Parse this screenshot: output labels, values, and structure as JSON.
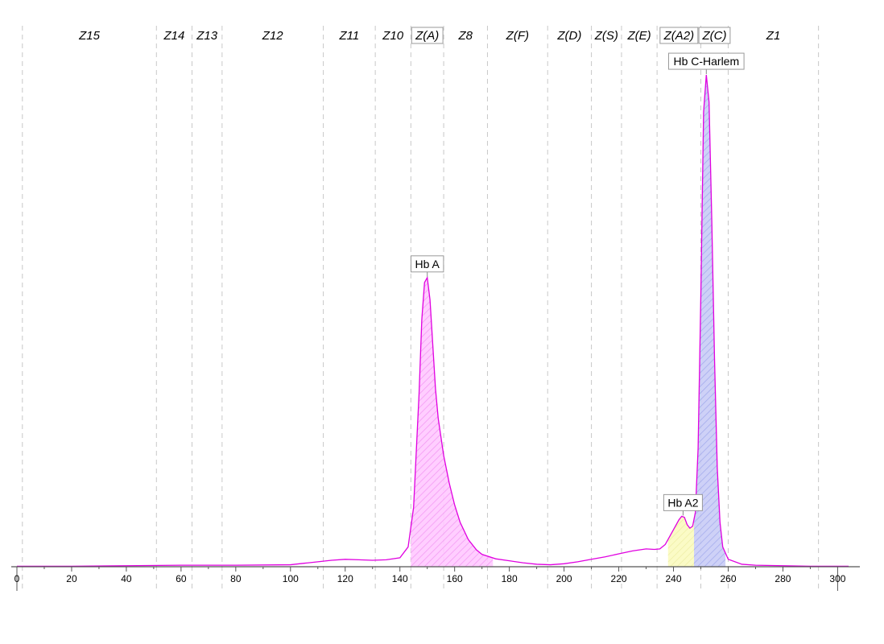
{
  "chart_data": {
    "type": "area",
    "title": "",
    "xlabel": "",
    "ylabel": "",
    "xlim": [
      0,
      304
    ],
    "ylim": [
      0,
      100
    ],
    "x_ticks": [
      0,
      20,
      40,
      60,
      80,
      100,
      120,
      140,
      160,
      180,
      200,
      220,
      240,
      260,
      280,
      300
    ],
    "grid": false,
    "zone_boundaries": [
      2,
      51,
      64,
      75,
      112,
      131,
      144,
      156,
      172,
      194,
      210,
      221,
      234,
      250,
      260,
      293
    ],
    "zones": [
      {
        "label": "Z15",
        "boxed": false
      },
      {
        "label": "Z14",
        "boxed": false
      },
      {
        "label": "Z13",
        "boxed": false
      },
      {
        "label": "Z12",
        "boxed": false
      },
      {
        "label": "Z11",
        "boxed": false
      },
      {
        "label": "Z10",
        "boxed": false
      },
      {
        "label": "Z(A)",
        "boxed": true
      },
      {
        "label": "Z8",
        "boxed": false
      },
      {
        "label": "Z(F)",
        "boxed": false
      },
      {
        "label": "Z(D)",
        "boxed": false
      },
      {
        "label": "Z(S)",
        "boxed": false
      },
      {
        "label": "Z(E)",
        "boxed": false
      },
      {
        "label": "Z(A2)",
        "boxed": true
      },
      {
        "label": "Z(C)",
        "boxed": true
      },
      {
        "label": "Z1",
        "boxed": false
      }
    ],
    "series": [
      {
        "color": "#e000e0",
        "x": [
          0,
          20,
          40,
          60,
          80,
          100,
          105,
          110,
          115,
          120,
          125,
          130,
          135,
          140,
          143,
          145,
          147,
          148,
          149,
          150,
          151,
          152,
          153,
          154,
          156,
          158,
          160,
          162,
          165,
          168,
          170,
          175,
          180,
          185,
          190,
          195,
          200,
          205,
          210,
          215,
          220,
          225,
          230,
          233,
          235,
          237,
          240,
          242,
          243,
          244,
          245,
          246,
          247,
          248,
          249,
          250,
          251,
          252,
          253,
          254,
          255,
          256,
          257,
          258,
          260,
          265,
          270,
          280,
          290,
          304
        ],
        "y": [
          0.1,
          0.1,
          0.2,
          0.3,
          0.3,
          0.4,
          0.7,
          1.0,
          1.3,
          1.5,
          1.4,
          1.3,
          1.4,
          1.8,
          4,
          12,
          35,
          50,
          57.5,
          58.5,
          54,
          45,
          36,
          30,
          22.5,
          17,
          12.5,
          9,
          5.5,
          3.4,
          2.5,
          1.6,
          1.2,
          0.8,
          0.5,
          0.4,
          0.6,
          1.0,
          1.5,
          2.0,
          2.6,
          3.2,
          3.6,
          3.5,
          3.6,
          4.5,
          7.5,
          9.5,
          10.2,
          10,
          8.5,
          7.8,
          8.2,
          11,
          24,
          55,
          92,
          99.5,
          94,
          70,
          42,
          20,
          9,
          4,
          1.5,
          0.5,
          0.3,
          0.2,
          0.1,
          0.1
        ]
      }
    ],
    "peaks": [
      {
        "label": "Hb A",
        "x": 150,
        "y": 58.5,
        "range": [
          144,
          174
        ],
        "fill": "#ff8cff"
      },
      {
        "label": "Hb A2",
        "x": 243.5,
        "y": 10.2,
        "range": [
          238,
          247.5
        ],
        "fill": "#f3f39a"
      },
      {
        "label": "Hb C-Harlem",
        "x": 252,
        "y": 99.5,
        "range": [
          247.5,
          259
        ],
        "fill": "#9aa4ee"
      }
    ]
  }
}
